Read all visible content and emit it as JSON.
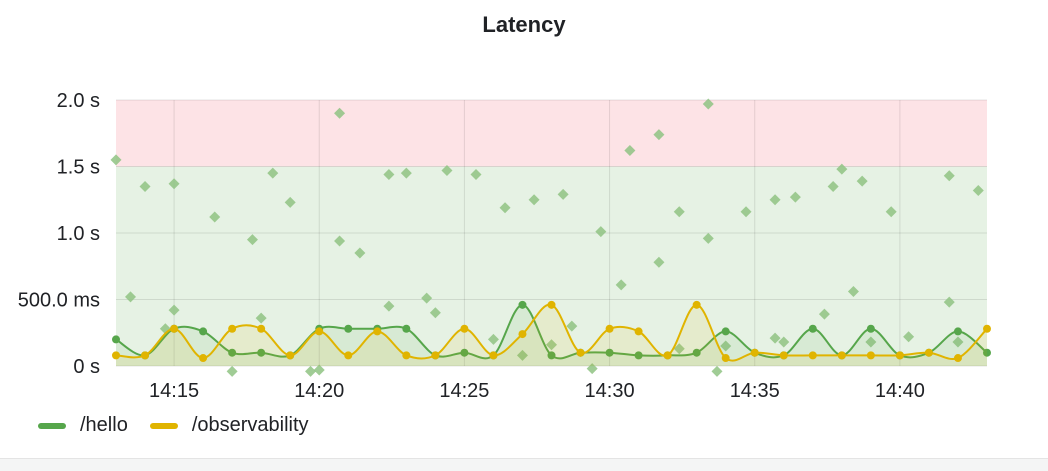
{
  "panel": {
    "title": "Latency"
  },
  "chart_data": {
    "type": "line",
    "title": "Latency",
    "x": [
      "14:13",
      "14:14",
      "14:15",
      "14:16",
      "14:17",
      "14:18",
      "14:19",
      "14:20",
      "14:21",
      "14:22",
      "14:23",
      "14:24",
      "14:25",
      "14:26",
      "14:27",
      "14:28",
      "14:29",
      "14:30",
      "14:31",
      "14:32",
      "14:33",
      "14:34",
      "14:35",
      "14:36",
      "14:37",
      "14:38",
      "14:39",
      "14:40",
      "14:41",
      "14:42",
      "14:43"
    ],
    "x_ticks": [
      "14:15",
      "14:20",
      "14:25",
      "14:30",
      "14:35",
      "14:40"
    ],
    "y_ticks": [
      {
        "value": 0,
        "label": "0 s"
      },
      {
        "value": 0.5,
        "label": "500.0 ms"
      },
      {
        "value": 1.0,
        "label": "1.0 s"
      },
      {
        "value": 1.5,
        "label": "1.5 s"
      },
      {
        "value": 2.0,
        "label": "2.0 s"
      }
    ],
    "ylim": [
      0,
      2.0
    ],
    "xrange": [
      "14:13",
      "14:43"
    ],
    "grid": true,
    "legend_position": "bottom-left",
    "thresholds": [
      {
        "from": 0,
        "to": 1.5,
        "color": "#e6f2e4"
      },
      {
        "from": 1.5,
        "to": 2.0,
        "color": "#fde3e6"
      }
    ],
    "series": [
      {
        "name": "/hello",
        "color": "#56a64b",
        "values": [
          0.2,
          0.08,
          0.28,
          0.26,
          0.1,
          0.1,
          0.08,
          0.28,
          0.28,
          0.28,
          0.28,
          0.08,
          0.1,
          0.08,
          0.46,
          0.08,
          0.1,
          0.1,
          0.08,
          0.08,
          0.1,
          0.26,
          0.1,
          0.08,
          0.28,
          0.08,
          0.28,
          0.08,
          0.1,
          0.26,
          0.1
        ]
      },
      {
        "name": "/observability",
        "color": "#e0b400",
        "values": [
          0.08,
          0.08,
          0.28,
          0.06,
          0.28,
          0.28,
          0.08,
          0.26,
          0.08,
          0.26,
          0.08,
          0.08,
          0.28,
          0.08,
          0.24,
          0.46,
          0.1,
          0.28,
          0.26,
          0.08,
          0.46,
          0.06,
          0.1,
          0.08,
          0.08,
          0.08,
          0.08,
          0.08,
          0.1,
          0.06,
          0.28
        ]
      }
    ],
    "scatter": {
      "color": "#8fc383",
      "points": [
        [
          "14:13",
          1.55
        ],
        [
          "14:13.5",
          0.52
        ],
        [
          "14:14",
          1.35
        ],
        [
          "14:14.7",
          0.28
        ],
        [
          "14:15",
          0.42
        ],
        [
          "14:15",
          1.37
        ],
        [
          "14:16.4",
          1.12
        ],
        [
          "14:17",
          -0.04
        ],
        [
          "14:17.7",
          0.95
        ],
        [
          "14:18",
          0.36
        ],
        [
          "14:18.4",
          1.45
        ],
        [
          "14:19",
          1.23
        ],
        [
          "14:19.7",
          -0.04
        ],
        [
          "14:20",
          -0.03
        ],
        [
          "14:20.7",
          1.9
        ],
        [
          "14:20.7",
          0.94
        ],
        [
          "14:21.4",
          0.85
        ],
        [
          "14:22.4",
          1.44
        ],
        [
          "14:22.4",
          0.45
        ],
        [
          "14:23",
          1.45
        ],
        [
          "14:23.7",
          0.51
        ],
        [
          "14:24",
          0.4
        ],
        [
          "14:24.4",
          1.47
        ],
        [
          "14:25.4",
          1.44
        ],
        [
          "14:26",
          0.2
        ],
        [
          "14:26.4",
          1.19
        ],
        [
          "14:27",
          0.08
        ],
        [
          "14:27.4",
          1.25
        ],
        [
          "14:28",
          0.16
        ],
        [
          "14:28.4",
          1.29
        ],
        [
          "14:28.7",
          0.3
        ],
        [
          "14:29.4",
          -0.02
        ],
        [
          "14:29.7",
          1.01
        ],
        [
          "14:30.4",
          0.61
        ],
        [
          "14:30.7",
          1.62
        ],
        [
          "14:31.7",
          1.74
        ],
        [
          "14:31.7",
          0.78
        ],
        [
          "14:32.4",
          1.16
        ],
        [
          "14:32.4",
          0.13
        ],
        [
          "14:33.4",
          1.97
        ],
        [
          "14:33.4",
          0.96
        ],
        [
          "14:33.7",
          -0.04
        ],
        [
          "14:34",
          0.15
        ],
        [
          "14:34.7",
          1.16
        ],
        [
          "14:35.7",
          1.25
        ],
        [
          "14:35.7",
          0.21
        ],
        [
          "14:36",
          0.18
        ],
        [
          "14:36.4",
          1.27
        ],
        [
          "14:37.4",
          0.39
        ],
        [
          "14:37.7",
          1.35
        ],
        [
          "14:38",
          1.48
        ],
        [
          "14:38.4",
          0.56
        ],
        [
          "14:38.7",
          1.39
        ],
        [
          "14:39",
          0.18
        ],
        [
          "14:39.7",
          1.16
        ],
        [
          "14:40.3",
          0.22
        ],
        [
          "14:41.7",
          1.43
        ],
        [
          "14:41.7",
          0.48
        ],
        [
          "14:42",
          0.18
        ],
        [
          "14:42.7",
          1.32
        ]
      ]
    }
  }
}
